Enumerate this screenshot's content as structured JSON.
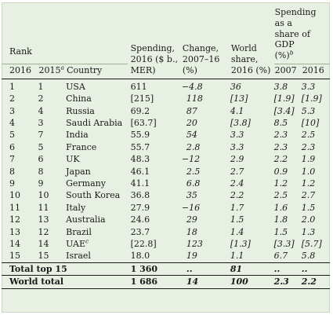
{
  "header": {
    "rank": "Rank",
    "year2016": "2016",
    "year2015": "2015",
    "year2015_sup": "a",
    "country": "Country",
    "spending": [
      "Spending,",
      "2016 ($ b.,",
      "MER)"
    ],
    "change": [
      "Change,",
      "2007–16",
      "(%)"
    ],
    "world_share": [
      "World",
      "share,",
      "2016 (%)"
    ],
    "share_gdp": [
      "Spending",
      "as a",
      "share of GDP",
      "(%)"
    ],
    "share_gdp_sup": "b",
    "share_2007": "2007",
    "share_2016": "2016"
  },
  "rows": [
    {
      "r16": "1",
      "r15": "1",
      "country": "USA",
      "country_sup": "",
      "spending": "611",
      "change": "−4.8",
      "world": "36",
      "s07": "3.8",
      "s16": "3.3"
    },
    {
      "r16": "2",
      "r15": "2",
      "country": "China",
      "country_sup": "",
      "spending": "[215]",
      "change": "118",
      "world": "[13]",
      "s07": "[1.9]",
      "s16": "[1.9]"
    },
    {
      "r16": "3",
      "r15": "4",
      "country": "Russia",
      "country_sup": "",
      "spending": "69.2",
      "change": "87",
      "world": "4.1",
      "s07": "[3.4]",
      "s16": "5.3"
    },
    {
      "r16": "4",
      "r15": "3",
      "country": "Saudi Arabia",
      "country_sup": "",
      "spending": "[63.7]",
      "change": "20",
      "world": "[3.8]",
      "s07": "8.5",
      "s16": "[10]"
    },
    {
      "r16": "5",
      "r15": "7",
      "country": "India",
      "country_sup": "",
      "spending": "55.9",
      "change": "54",
      "world": "3.3",
      "s07": "2.3",
      "s16": "2.5"
    },
    {
      "r16": "6",
      "r15": "5",
      "country": "France",
      "country_sup": "",
      "spending": "55.7",
      "change": "2.8",
      "world": "3.3",
      "s07": "2.3",
      "s16": "2.3"
    },
    {
      "r16": "7",
      "r15": "6",
      "country": "UK",
      "country_sup": "",
      "spending": "48.3",
      "change": "−12",
      "world": "2.9",
      "s07": "2.2",
      "s16": "1.9"
    },
    {
      "r16": "8",
      "r15": "8",
      "country": "Japan",
      "country_sup": "",
      "spending": "46.1",
      "change": "2.5",
      "world": "2.7",
      "s07": "0.9",
      "s16": "1.0"
    },
    {
      "r16": "9",
      "r15": "9",
      "country": "Germany",
      "country_sup": "",
      "spending": "41.1",
      "change": "6.8",
      "world": "2.4",
      "s07": "1.2",
      "s16": "1.2"
    },
    {
      "r16": "10",
      "r15": "10",
      "country": "South Korea",
      "country_sup": "",
      "spending": "36.8",
      "change": "35",
      "world": "2.2",
      "s07": "2.5",
      "s16": "2.7"
    },
    {
      "r16": "11",
      "r15": "11",
      "country": "Italy",
      "country_sup": "",
      "spending": "27.9",
      "change": "−16",
      "world": "1.7",
      "s07": "1.6",
      "s16": "1.5"
    },
    {
      "r16": "12",
      "r15": "13",
      "country": "Australia",
      "country_sup": "",
      "spending": "24.6",
      "change": "29",
      "world": "1.5",
      "s07": "1.8",
      "s16": "2.0"
    },
    {
      "r16": "13",
      "r15": "12",
      "country": "Brazil",
      "country_sup": "",
      "spending": "23.7",
      "change": "18",
      "world": "1.4",
      "s07": "1.5",
      "s16": "1.3"
    },
    {
      "r16": "14",
      "r15": "14",
      "country": "UAE",
      "country_sup": "c",
      "spending": "[22.8]",
      "change": "123",
      "world": "[1.3]",
      "s07": "[3.3]",
      "s16": "[5.7]"
    },
    {
      "r16": "15",
      "r15": "15",
      "country": "Israel",
      "country_sup": "",
      "spending": "18.0",
      "change": "19",
      "world": "1.1",
      "s07": "6.7",
      "s16": "5.8"
    }
  ],
  "totals": [
    {
      "label": "Total top 15",
      "spending": "1 360",
      "change": "..",
      "world": "81",
      "s07": "..",
      "s16": ".."
    },
    {
      "label": "World total",
      "spending": "1 686",
      "change": "14",
      "world": "100",
      "s07": "2.3",
      "s16": "2.2"
    }
  ]
}
